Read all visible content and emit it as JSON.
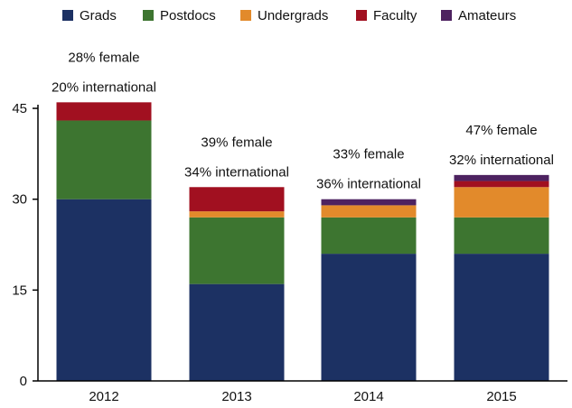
{
  "chart_data": {
    "type": "bar",
    "stacked": true,
    "categories": [
      "2012",
      "2013",
      "2014",
      "2015"
    ],
    "series": [
      {
        "name": "Grads",
        "color": "#1c3163",
        "values": [
          30,
          16,
          21,
          21
        ]
      },
      {
        "name": "Postdocs",
        "color": "#3d7530",
        "values": [
          13,
          11,
          6,
          6
        ]
      },
      {
        "name": "Undergrads",
        "color": "#e28a2b",
        "values": [
          0,
          1,
          2,
          5
        ]
      },
      {
        "name": "Faculty",
        "color": "#a11020",
        "values": [
          3,
          4,
          0,
          1
        ]
      },
      {
        "name": "Amateurs",
        "color": "#4d2260",
        "values": [
          0,
          0,
          1,
          1
        ]
      }
    ],
    "annotations": [
      {
        "category": "2012",
        "lines": [
          "28% female",
          "20% international"
        ]
      },
      {
        "category": "2013",
        "lines": [
          "39% female",
          "34% international"
        ]
      },
      {
        "category": "2014",
        "lines": [
          "33% female",
          "36% international"
        ]
      },
      {
        "category": "2015",
        "lines": [
          "47% female",
          "32% international"
        ]
      }
    ],
    "yticks": [
      0,
      15,
      30,
      45
    ],
    "ylim": [
      0,
      45
    ],
    "grid": false,
    "legend_position": "top",
    "axis_color": "#000000"
  }
}
